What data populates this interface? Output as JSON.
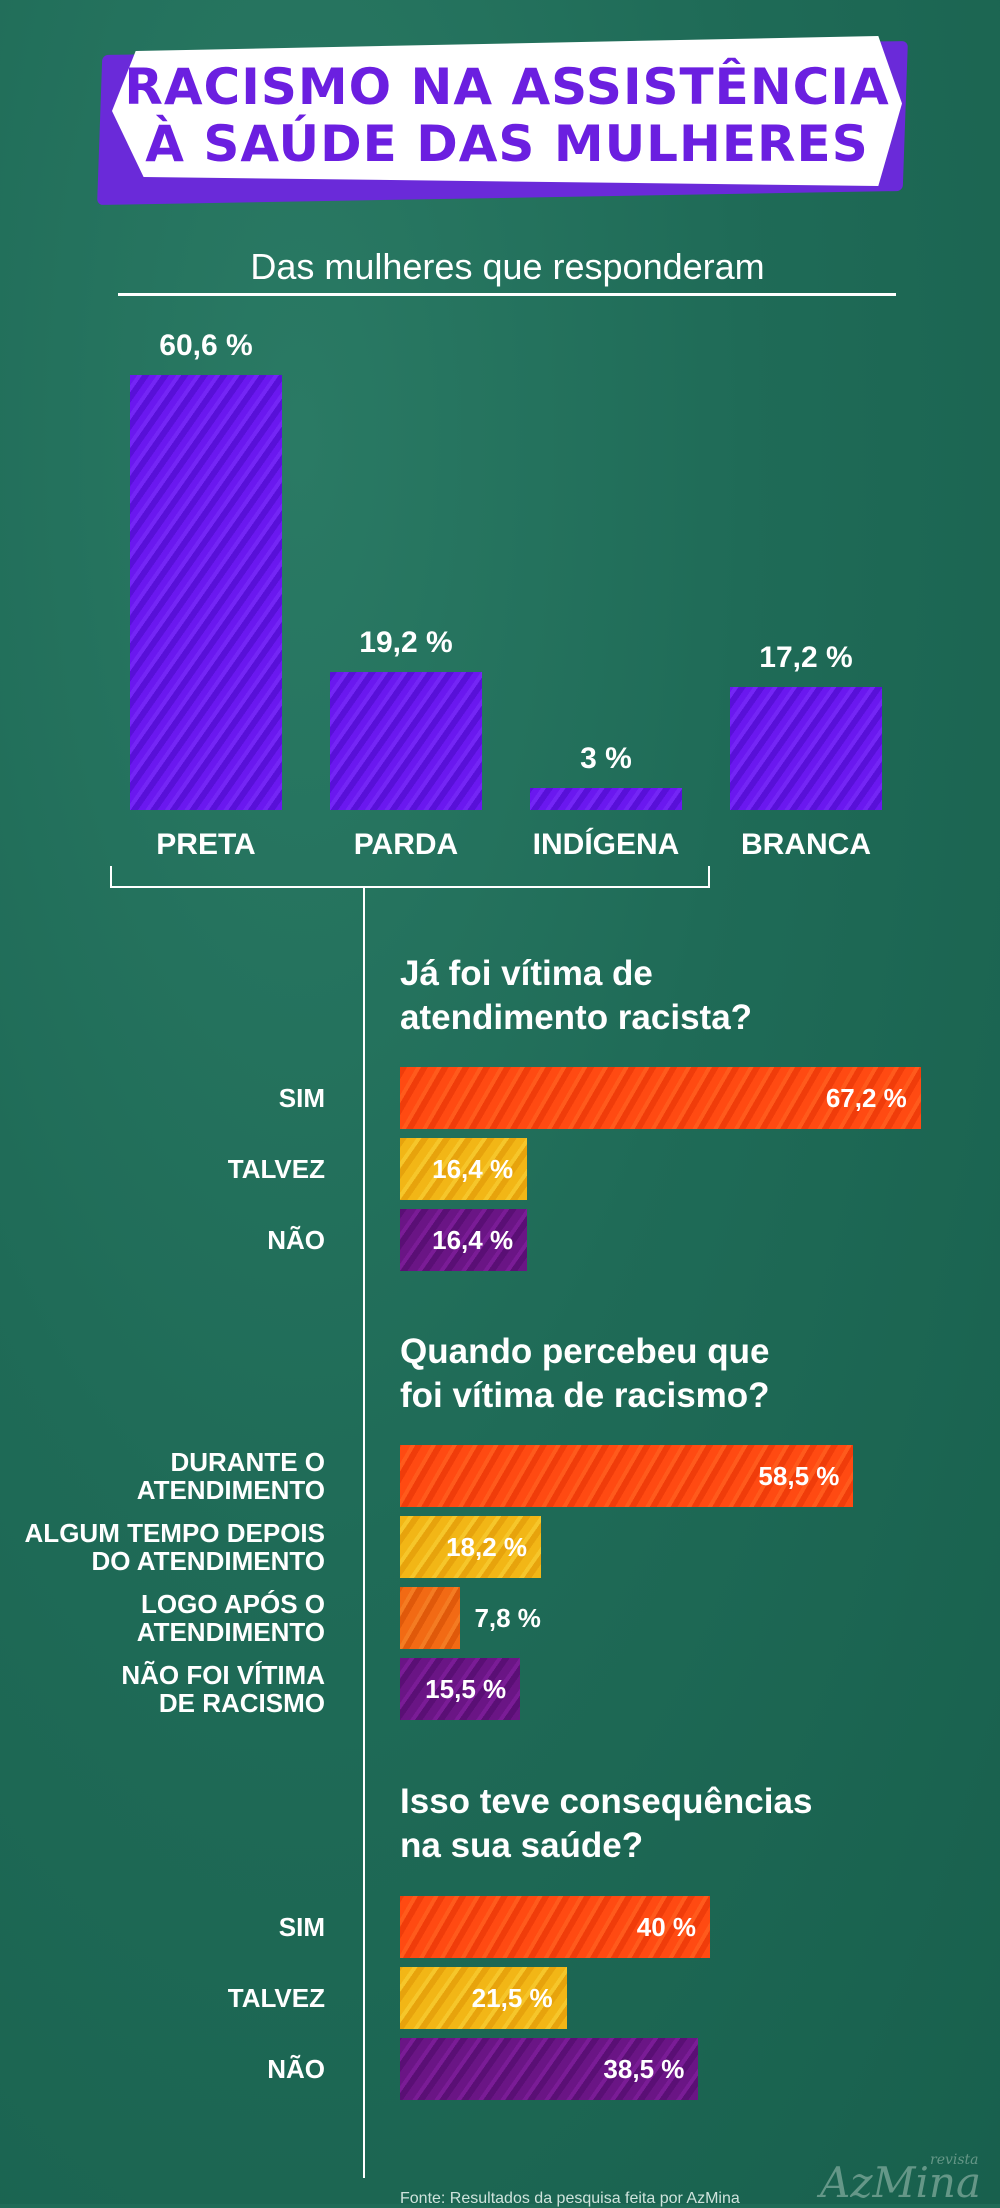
{
  "title": {
    "line1": "Racismo na assistência",
    "line2": "à saúde das mulheres"
  },
  "colors": {
    "background": "#1f6b57",
    "purple": "#6a18ef",
    "title": "#6b1fe0",
    "red": "#ff4a12",
    "yellow": "#f2b616",
    "violet": "#6a1585",
    "orange": "#f26a14"
  },
  "chart_data": [
    {
      "type": "bar",
      "title": "Das mulheres que responderam",
      "unit": "%",
      "categories": [
        "PRETA",
        "PARDA",
        "INDÍGENA",
        "BRANCA"
      ],
      "values": [
        60.6,
        19.2,
        3,
        17.2
      ],
      "labels": [
        "60,6 %",
        "19,2 %",
        "3 %",
        "17,2 %"
      ]
    },
    {
      "type": "bar",
      "orientation": "horizontal",
      "title": "Já foi vítima de atendimento racista?",
      "title_lines": [
        "Já foi vítima de",
        "atendimento racista?"
      ],
      "categories": [
        "SIM",
        "TALVEZ",
        "NÃO"
      ],
      "values": [
        67.2,
        16.4,
        16.4
      ],
      "labels": [
        "67,2 %",
        "16,4 %",
        "16,4 %"
      ]
    },
    {
      "type": "bar",
      "orientation": "horizontal",
      "title": "Quando percebeu que foi vítima de racismo?",
      "title_lines": [
        "Quando percebeu que",
        "foi vítima de racismo?"
      ],
      "categories": [
        "DURANTE O ATENDIMENTO",
        "ALGUM TEMPO DEPOIS DO ATENDIMENTO",
        "LOGO APÓS O ATENDIMENTO",
        "NÃO FOI VÍTIMA DE RACISMO"
      ],
      "category_lines": [
        [
          "DURANTE O",
          "ATENDIMENTO"
        ],
        [
          "ALGUM TEMPO DEPOIS",
          "DO ATENDIMENTO"
        ],
        [
          "LOGO APÓS O",
          "ATENDIMENTO"
        ],
        [
          "NÃO FOI VÍTIMA",
          "DE RACISMO"
        ]
      ],
      "values": [
        58.5,
        18.2,
        7.8,
        15.5
      ],
      "labels": [
        "58,5 %",
        "18,2 %",
        "7,8 %",
        "15,5 %"
      ]
    },
    {
      "type": "bar",
      "orientation": "horizontal",
      "title": "Isso teve consequências na sua saúde?",
      "title_lines": [
        "Isso teve consequências",
        "na sua saúde?"
      ],
      "categories": [
        "SIM",
        "TALVEZ",
        "NÃO"
      ],
      "values": [
        40,
        21.5,
        38.5
      ],
      "labels": [
        "40 %",
        "21,5 %",
        "38,5 %"
      ]
    }
  ],
  "source": "Fonte: Resultados da pesquisa feita por AzMina",
  "logo": {
    "main": "AzMina",
    "small": "revista"
  }
}
